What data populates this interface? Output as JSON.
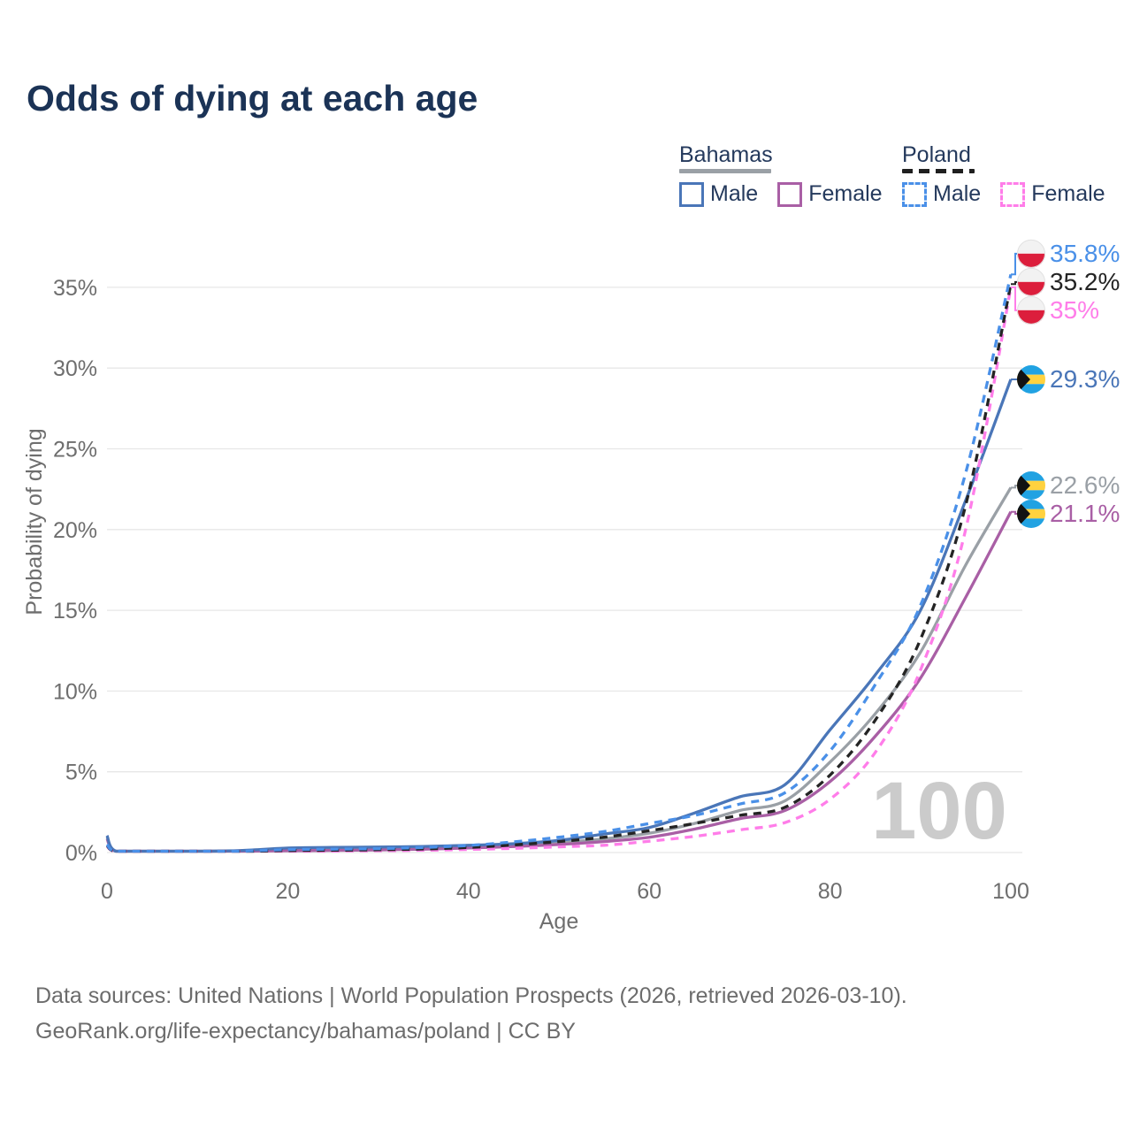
{
  "header": {
    "title": "Odds of dying at each age"
  },
  "legend": {
    "groups": [
      {
        "id": "bahamas",
        "title": "Bahamas",
        "line_style": "solid",
        "underline_color": "#9aa0a6",
        "items": [
          {
            "label": "Male",
            "color": "#4a76b8",
            "dashed": false
          },
          {
            "label": "Female",
            "color": "#a95fa5",
            "dashed": false
          }
        ]
      },
      {
        "id": "poland",
        "title": "Poland",
        "line_style": "dashed",
        "underline_color": "#1f1f1f",
        "items": [
          {
            "label": "Male",
            "color": "#4a90e8",
            "dashed": true
          },
          {
            "label": "Female",
            "color": "#ff7de9",
            "dashed": true
          }
        ]
      }
    ]
  },
  "chart_data": {
    "type": "line",
    "title": "Odds of dying at each age",
    "xlabel": "Age",
    "ylabel": "Probability of dying",
    "x_ticks": [
      0,
      20,
      40,
      60,
      80,
      100
    ],
    "y_tick_labels": [
      "0%",
      "5%",
      "10%",
      "15%",
      "20%",
      "25%",
      "30%",
      "35%"
    ],
    "y_tick_values": [
      0,
      5,
      10,
      15,
      20,
      25,
      30,
      35
    ],
    "xlim": [
      0,
      100
    ],
    "ylim_pct": [
      0,
      37
    ],
    "grid": "horizontal",
    "watermark": "100",
    "x": [
      0,
      1,
      5,
      10,
      15,
      20,
      25,
      30,
      35,
      40,
      45,
      50,
      55,
      60,
      65,
      70,
      75,
      80,
      85,
      90,
      95,
      100
    ],
    "series": [
      {
        "id": "bahamas-total",
        "name": "Bahamas (both sexes)",
        "color": "#9aa0a6",
        "dashed": false,
        "flag": "bahamas",
        "end_label": "22.6%",
        "end_value": 22.6,
        "values": [
          0.95,
          0.06,
          0.04,
          0.05,
          0.11,
          0.2,
          0.23,
          0.25,
          0.29,
          0.36,
          0.45,
          0.62,
          0.85,
          1.2,
          1.8,
          2.6,
          3.2,
          5.6,
          8.6,
          12.4,
          17.8,
          22.6
        ]
      },
      {
        "id": "bahamas-female",
        "name": "Bahamas Female",
        "color": "#a95fa5",
        "dashed": false,
        "flag": "bahamas",
        "end_label": "21.1%",
        "end_value": 21.1,
        "values": [
          0.85,
          0.05,
          0.04,
          0.04,
          0.08,
          0.11,
          0.13,
          0.16,
          0.21,
          0.28,
          0.37,
          0.5,
          0.68,
          0.95,
          1.45,
          2.1,
          2.6,
          4.4,
          7.2,
          10.8,
          15.8,
          21.1
        ]
      },
      {
        "id": "bahamas-male",
        "name": "Bahamas Male",
        "color": "#4a76b8",
        "dashed": false,
        "flag": "bahamas",
        "end_label": "29.3%",
        "end_value": 29.3,
        "values": [
          1.05,
          0.07,
          0.05,
          0.06,
          0.13,
          0.28,
          0.32,
          0.34,
          0.38,
          0.45,
          0.55,
          0.75,
          1.15,
          1.55,
          2.45,
          3.45,
          4.2,
          7.6,
          11.0,
          15.0,
          21.8,
          29.3
        ]
      },
      {
        "id": "poland-female",
        "name": "Poland Female",
        "color": "#ff7de9",
        "dashed": true,
        "flag": "poland",
        "end_label": "35%",
        "end_value": 35.0,
        "values": [
          0.4,
          0.03,
          0.02,
          0.03,
          0.05,
          0.07,
          0.09,
          0.11,
          0.14,
          0.19,
          0.26,
          0.35,
          0.45,
          0.7,
          1.0,
          1.4,
          1.85,
          3.3,
          6.2,
          11.3,
          20.0,
          35.0
        ]
      },
      {
        "id": "poland-total",
        "name": "Poland (both sexes)",
        "color": "#242424",
        "dashed": true,
        "flag": "poland",
        "end_label": "35.2%",
        "end_value": 35.2,
        "values": [
          0.44,
          0.04,
          0.03,
          0.04,
          0.07,
          0.12,
          0.14,
          0.17,
          0.22,
          0.31,
          0.47,
          0.68,
          0.95,
          1.35,
          1.8,
          2.3,
          2.8,
          4.8,
          8.2,
          13.2,
          21.5,
          35.2
        ]
      },
      {
        "id": "poland-male",
        "name": "Poland Male",
        "color": "#4a90e8",
        "dashed": true,
        "flag": "poland",
        "end_label": "35.8%",
        "end_value": 35.8,
        "values": [
          0.5,
          0.04,
          0.03,
          0.04,
          0.09,
          0.18,
          0.21,
          0.24,
          0.31,
          0.44,
          0.66,
          0.95,
          1.3,
          1.8,
          2.3,
          3.0,
          3.7,
          6.3,
          10.4,
          15.3,
          23.5,
          35.8
        ]
      }
    ],
    "flag_colors": {
      "poland": {
        "top": "#f2f2f2",
        "bottom": "#dc1e3c",
        "ring": "#e2e2e2"
      },
      "bahamas": {
        "aqua": "#21a2e2",
        "yellow": "#ffd23f",
        "black": "#121212"
      }
    },
    "style": {
      "grid_color": "#e7e7e7",
      "axis_text_color": "#6e6e6e",
      "watermark_color": "#cbcbcb"
    }
  },
  "footer": {
    "line1": "Data sources: United Nations | World Population Prospects (2026, retrieved 2026-03-10).",
    "line2": "GeoRank.org/life-expectancy/bahamas/poland | CC BY"
  }
}
